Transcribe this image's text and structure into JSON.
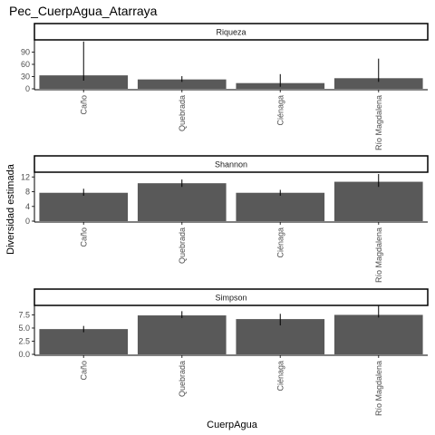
{
  "chart_data": {
    "type": "bar",
    "title": "Pec_CuerpAgua_Atarraya",
    "xlabel": "CuerpAgua",
    "ylabel": "Diversidad estimada",
    "categories": [
      "Caño",
      "Quebrada",
      "Ciénaga",
      "Río Magdalena"
    ],
    "bar_color": "#595959",
    "panels": [
      {
        "strip": "Riqueza",
        "ylim": [
          0,
          120
        ],
        "ticks": [
          "0",
          "30",
          "60",
          "90"
        ],
        "tick_values": [
          0,
          30,
          60,
          90
        ],
        "values": [
          33,
          23,
          14,
          26
        ],
        "err_low": [
          20,
          17,
          5,
          17
        ],
        "err_high": [
          116,
          31,
          36,
          74
        ]
      },
      {
        "strip": "Shannon",
        "ylim": [
          0,
          13.3
        ],
        "ticks": [
          "0",
          "4",
          "8",
          "12"
        ],
        "tick_values": [
          0,
          4,
          8,
          12
        ],
        "values": [
          7.7,
          10.3,
          7.7,
          10.7
        ],
        "err_low": [
          6.9,
          9.3,
          6.9,
          9.3
        ],
        "err_high": [
          8.8,
          11.3,
          8.5,
          12.8
        ]
      },
      {
        "strip": "Simpson",
        "ylim": [
          0,
          9.3
        ],
        "ticks": [
          "0.0",
          "2.5",
          "5.0",
          "7.5"
        ],
        "tick_values": [
          0,
          2.5,
          5.0,
          7.5
        ],
        "values": [
          4.8,
          7.4,
          6.7,
          7.5
        ],
        "err_low": [
          4.2,
          6.9,
          5.5,
          7.0
        ],
        "err_high": [
          5.4,
          8.2,
          7.7,
          9.2
        ]
      }
    ]
  }
}
